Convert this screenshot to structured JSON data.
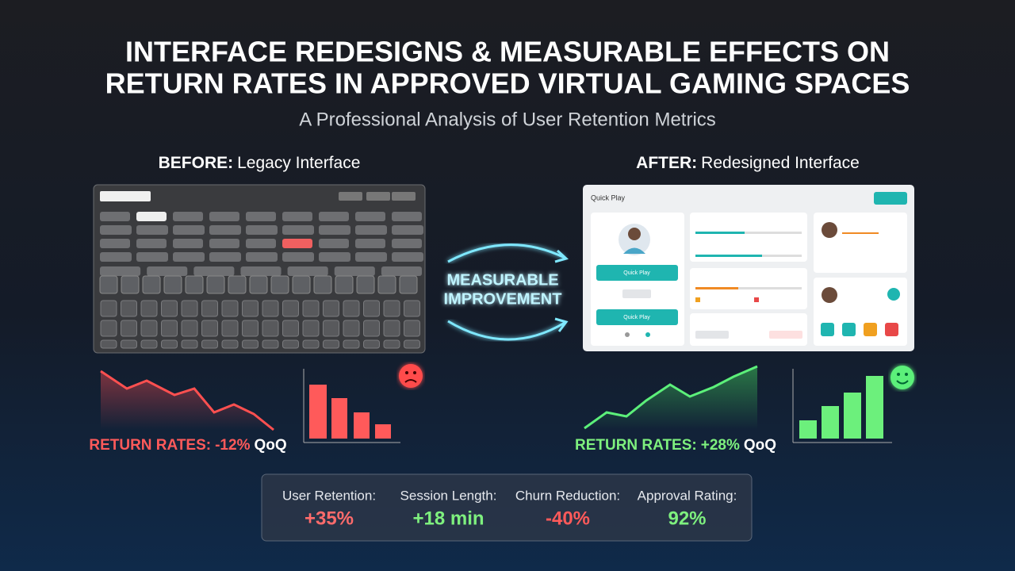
{
  "header": {
    "title_line1": "INTERFACE REDESIGNS & MEASURABLE EFFECTS ON",
    "title_line2": "RETURN RATES IN APPROVED VIRTUAL GAMING SPACES",
    "subtitle": "A Professional Analysis of User Retention Metrics"
  },
  "before": {
    "label": "BEFORE:",
    "name": "Legacy Interface",
    "result_label": "RETURN RATES:",
    "result_value": "-12%",
    "result_unit": "QoQ"
  },
  "after": {
    "label": "AFTER:",
    "name": "Redesigned Interface",
    "screen_title": "Quick Play",
    "buttons": [
      "Quick Play",
      "Quick Play"
    ],
    "result_label": "RETURN RATES:",
    "result_value": "+28%",
    "result_unit": "QoQ"
  },
  "center": {
    "line1": "MEASURABLE",
    "line2": "IMPROVEMENT"
  },
  "metrics": [
    {
      "label": "User Retention:",
      "value": "+35%"
    },
    {
      "label": "Session Length:",
      "value": "+18 min"
    },
    {
      "label": "Churn Reduction:",
      "value": "-40%"
    },
    {
      "label": "Approval Rating:",
      "value": "92%"
    }
  ]
}
